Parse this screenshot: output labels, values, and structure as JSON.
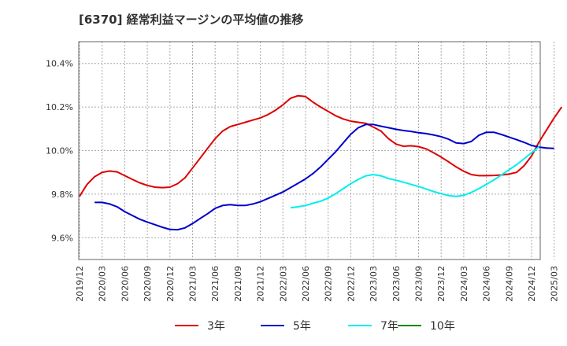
{
  "chart_data": {
    "type": "line",
    "title": "[6370]  経常利益マージンの平均値の推移",
    "xlabel": "",
    "ylabel": "",
    "ylim": [
      9.5,
      10.5
    ],
    "y_ticks": [
      "9.6%",
      "9.8%",
      "10.0%",
      "10.2%",
      "10.4%"
    ],
    "y_tick_values": [
      9.6,
      9.8,
      10.0,
      10.2,
      10.4
    ],
    "x_ticks": [
      "2019/12",
      "2020/03",
      "2020/06",
      "2020/09",
      "2020/12",
      "2021/03",
      "2021/06",
      "2021/09",
      "2021/12",
      "2022/03",
      "2022/06",
      "2022/09",
      "2022/12",
      "2023/03",
      "2023/06",
      "2023/09",
      "2023/12",
      "2024/03",
      "2024/06",
      "2024/09",
      "2024/12",
      "2025/03"
    ],
    "grid": true,
    "legend_position": "bottom",
    "series": [
      {
        "name": "3年",
        "color": "#dd0000",
        "values": [
          9.79,
          9.845,
          9.88,
          9.9,
          9.906,
          9.902,
          9.885,
          9.868,
          9.852,
          9.84,
          9.832,
          9.83,
          9.832,
          9.848,
          9.875,
          9.92,
          9.965,
          10.01,
          10.055,
          10.09,
          10.11,
          10.12,
          10.13,
          10.14,
          10.15,
          10.165,
          10.185,
          10.21,
          10.24,
          10.252,
          10.248,
          10.222,
          10.2,
          10.18,
          10.16,
          10.145,
          10.135,
          10.13,
          10.125,
          10.108,
          10.09,
          10.055,
          10.03,
          10.02,
          10.022,
          10.018,
          10.008,
          9.99,
          9.97,
          9.948,
          9.925,
          9.905,
          9.89,
          9.885,
          9.885,
          9.886,
          9.888,
          9.892,
          9.9,
          9.93,
          9.975,
          10.04,
          10.095,
          10.15,
          10.2
        ]
      },
      {
        "name": "5年",
        "color": "#0000cc",
        "values": [
          null,
          null,
          9.762,
          9.762,
          9.755,
          9.742,
          9.72,
          9.702,
          9.685,
          9.672,
          9.66,
          9.648,
          9.638,
          9.637,
          9.645,
          9.665,
          9.688,
          9.71,
          9.735,
          9.748,
          9.752,
          9.748,
          9.748,
          9.755,
          9.765,
          9.78,
          9.795,
          9.81,
          9.83,
          9.85,
          9.87,
          9.895,
          9.925,
          9.96,
          9.995,
          10.035,
          10.075,
          10.105,
          10.12,
          10.12,
          10.112,
          10.105,
          10.098,
          10.092,
          10.088,
          10.082,
          10.078,
          10.072,
          10.064,
          10.052,
          10.035,
          10.032,
          10.042,
          10.07,
          10.084,
          10.084,
          10.074,
          10.062,
          10.05,
          10.038,
          10.024,
          10.016,
          10.012,
          10.01
        ]
      },
      {
        "name": "7年",
        "color": "#00eeee",
        "values": [
          null,
          null,
          null,
          null,
          null,
          null,
          null,
          null,
          null,
          null,
          null,
          null,
          null,
          null,
          null,
          null,
          null,
          null,
          null,
          null,
          null,
          null,
          null,
          null,
          null,
          null,
          null,
          null,
          9.738,
          9.742,
          9.748,
          9.758,
          9.768,
          9.782,
          9.802,
          9.825,
          9.848,
          9.868,
          9.884,
          9.89,
          9.884,
          9.872,
          9.864,
          9.855,
          9.845,
          9.835,
          9.824,
          9.812,
          9.802,
          9.793,
          9.79,
          9.795,
          9.808,
          9.825,
          9.845,
          9.865,
          9.888,
          9.912,
          9.935,
          9.962,
          9.99,
          10.018
        ]
      },
      {
        "name": "10年",
        "color": "#008800",
        "values": []
      }
    ]
  }
}
